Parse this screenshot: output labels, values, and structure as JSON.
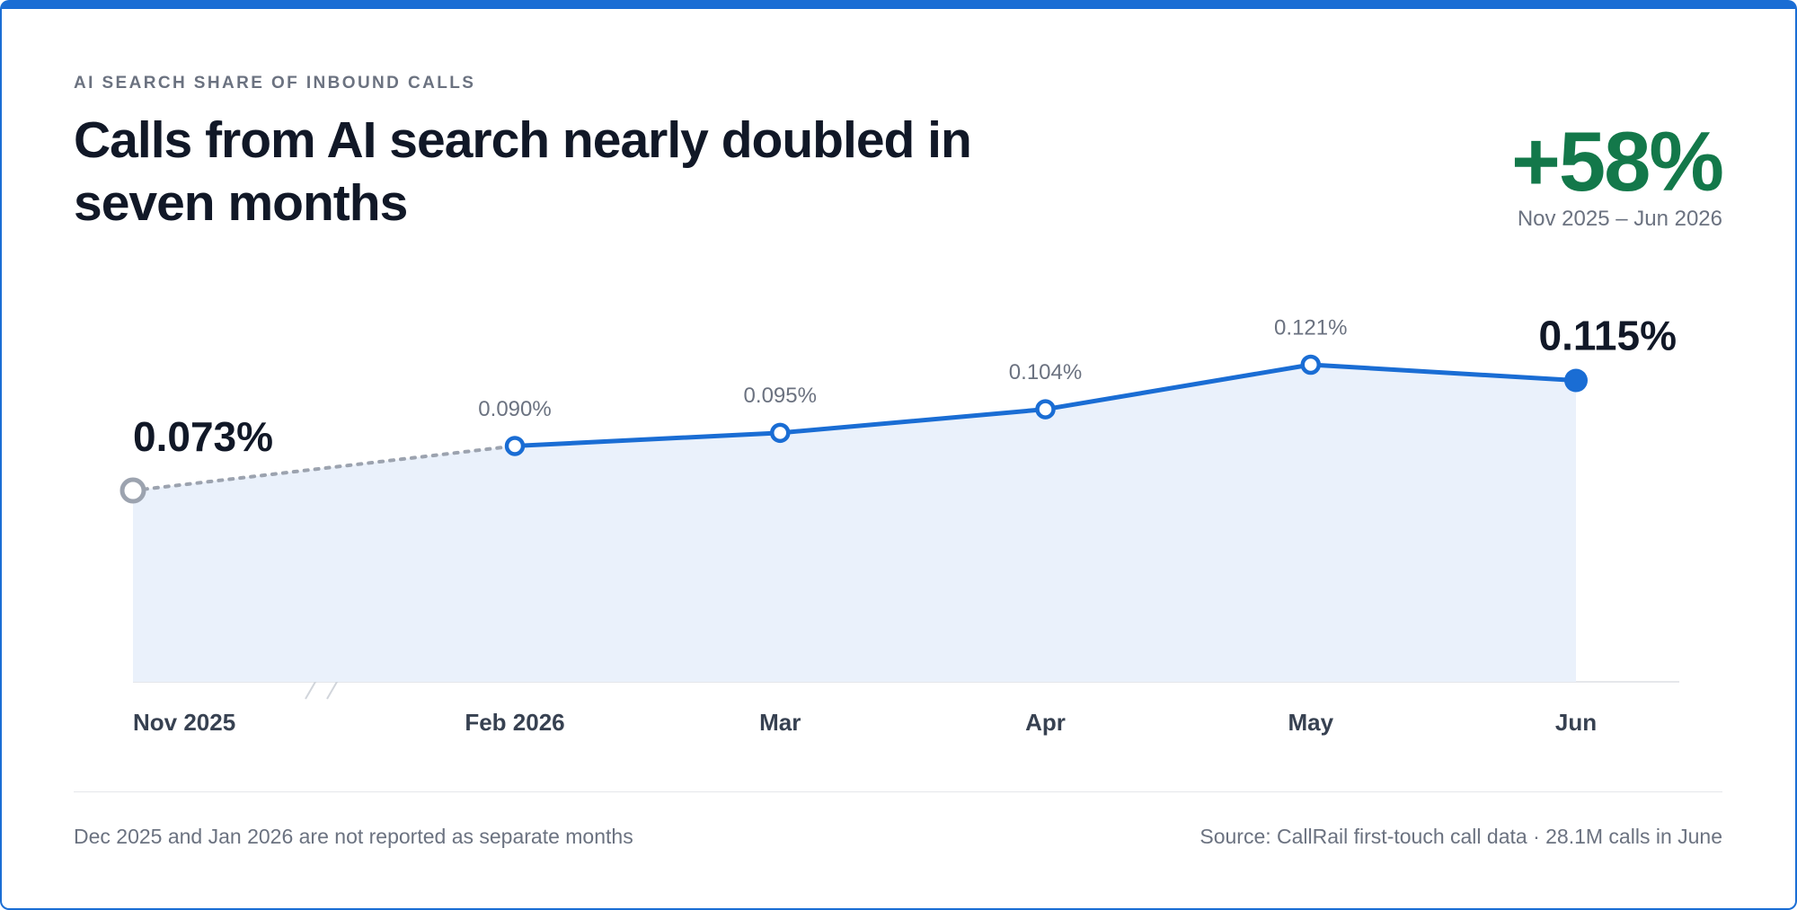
{
  "header": {
    "kicker": "AI SEARCH SHARE OF INBOUND CALLS",
    "title": "Calls from AI search nearly doubled in seven months",
    "headline_stat": "+58%",
    "stat_period": "Nov 2025 – Jun 2026"
  },
  "chart_data": {
    "type": "line",
    "categories": [
      "Nov 2025",
      "Feb 2026",
      "Mar",
      "Apr",
      "May",
      "Jun"
    ],
    "values": [
      0.073,
      0.09,
      0.095,
      0.104,
      0.121,
      0.115
    ],
    "value_labels": [
      "0.073%",
      "0.090%",
      "0.095%",
      "0.104%",
      "0.121%",
      "0.115%"
    ],
    "color": "#1a6dd4"
  },
  "footer": {
    "note": "Dec 2025 and Jan 2026 are not reported as separate months",
    "source": "Source: CallRail first-touch call data · 28.1M calls in June"
  }
}
